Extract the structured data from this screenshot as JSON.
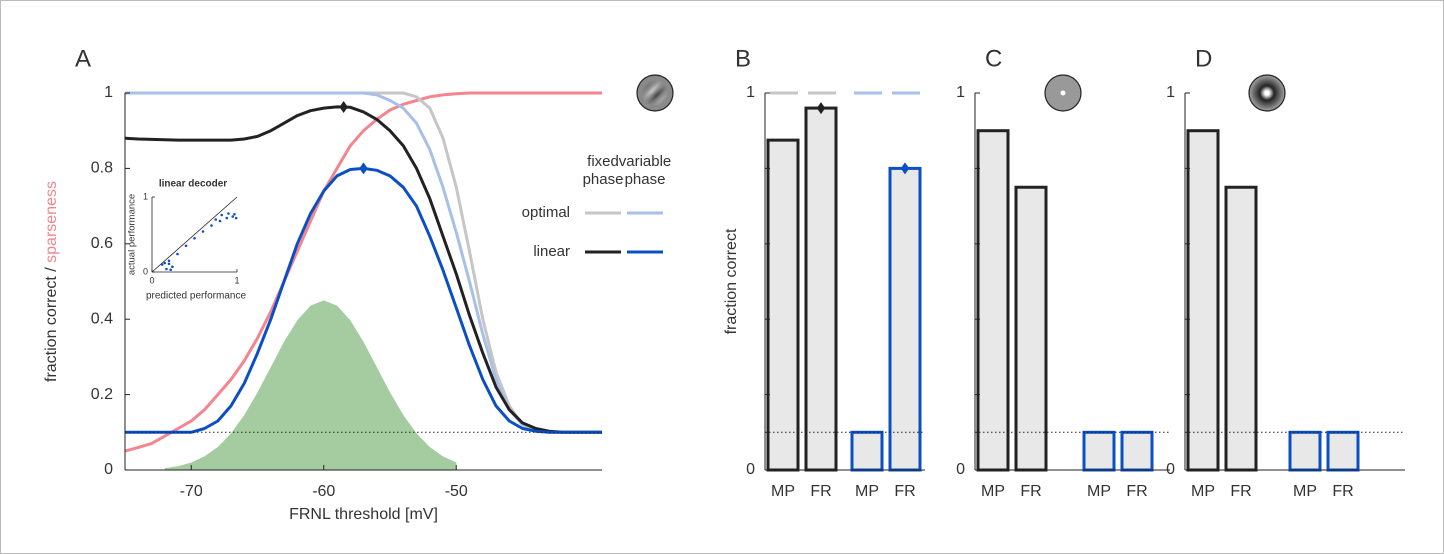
{
  "chart_data": [
    {
      "type": "line",
      "label": "A",
      "xlabel": "FRNL threshold [mV]",
      "ylabel": [
        "fraction correct / ",
        "sparseness"
      ],
      "xlim": [
        -75,
        -39
      ],
      "ylim": [
        0,
        1
      ],
      "xticks": [
        -70,
        -60,
        -50
      ],
      "yticks": [
        0,
        0.2,
        0.4,
        0.6,
        0.8,
        1
      ],
      "chance_level": 0.1,
      "x": [
        -75,
        -74,
        -73,
        -72,
        -71,
        -70,
        -69,
        -68,
        -67,
        -66,
        -65,
        -64,
        -63,
        -62,
        -61,
        -60,
        -59,
        -58,
        -57,
        -56,
        -55,
        -54,
        -53,
        -52,
        -51,
        -50,
        -49,
        -48,
        -47,
        -46,
        -45,
        -44,
        -43,
        -42,
        -41,
        -40,
        -39
      ],
      "series": [
        {
          "style": "area",
          "color": "#a5cca1",
          "values": [
            null,
            null,
            null,
            0.005,
            0.01,
            0.02,
            0.036,
            0.061,
            0.097,
            0.146,
            0.206,
            0.273,
            0.34,
            0.397,
            0.436,
            0.45,
            0.436,
            0.397,
            0.34,
            0.273,
            0.206,
            0.146,
            0.097,
            0.061,
            0.036,
            0.02,
            null,
            null,
            null,
            null,
            null,
            null,
            null,
            null,
            null,
            null,
            null
          ]
        },
        {
          "color": "#f4858e",
          "values": [
            0.05,
            0.06,
            0.07,
            0.09,
            0.11,
            0.13,
            0.16,
            0.2,
            0.24,
            0.29,
            0.35,
            0.42,
            0.5,
            0.58,
            0.66,
            0.74,
            0.8,
            0.86,
            0.9,
            0.93,
            0.955,
            0.97,
            0.98,
            0.99,
            0.995,
            0.998,
            1,
            1,
            1,
            1,
            1,
            1,
            1,
            1,
            1,
            1,
            1
          ]
        },
        {
          "color": "#c6c6c6",
          "row": 0,
          "column": 0,
          "values": [
            1,
            1,
            1,
            1,
            1,
            1,
            1,
            1,
            1,
            1,
            1,
            1,
            1,
            1,
            1,
            1,
            1,
            1,
            1,
            1,
            1,
            1,
            0.99,
            0.96,
            0.88,
            0.75,
            0.58,
            0.4,
            0.26,
            0.17,
            0.12,
            0.105,
            0.1,
            0.1,
            0.1,
            0.1,
            0.1
          ]
        },
        {
          "color": "#a8bfe8",
          "row": 0,
          "column": 1,
          "values": [
            1,
            1,
            1,
            1,
            1,
            1,
            1,
            1,
            1,
            1,
            1,
            1,
            1,
            1,
            1,
            1,
            1,
            1,
            1,
            0.995,
            0.98,
            0.96,
            0.92,
            0.85,
            0.75,
            0.63,
            0.5,
            0.36,
            0.24,
            0.16,
            0.12,
            0.105,
            0.1,
            0.1,
            0.1,
            0.1,
            0.1
          ]
        },
        {
          "color": "#222222",
          "row": 1,
          "column": 0,
          "values": [
            0.88,
            0.878,
            0.877,
            0.876,
            0.875,
            0.875,
            0.875,
            0.875,
            0.875,
            0.878,
            0.885,
            0.9,
            0.92,
            0.94,
            0.953,
            0.96,
            0.963,
            0.962,
            0.95,
            0.93,
            0.9,
            0.86,
            0.8,
            0.72,
            0.62,
            0.52,
            0.41,
            0.31,
            0.22,
            0.16,
            0.125,
            0.11,
            0.103,
            0.1,
            0.1,
            0.1,
            0.1
          ]
        },
        {
          "color": "#0b4fc4",
          "row": 1,
          "column": 1,
          "values": [
            0.1,
            0.1,
            0.1,
            0.1,
            0.1,
            0.1,
            0.11,
            0.13,
            0.17,
            0.23,
            0.31,
            0.4,
            0.5,
            0.6,
            0.68,
            0.74,
            0.78,
            0.797,
            0.8,
            0.795,
            0.78,
            0.75,
            0.7,
            0.62,
            0.53,
            0.43,
            0.33,
            0.24,
            0.17,
            0.13,
            0.11,
            0.103,
            0.1,
            0.1,
            0.1,
            0.1,
            0.1
          ]
        }
      ],
      "markers": [
        {
          "x": -58.5,
          "y": 0.963,
          "color": "#222222"
        },
        {
          "x": -57,
          "y": 0.8,
          "color": "#0b4fc4"
        }
      ],
      "legend": {
        "columns": [
          [
            "fixed",
            "phase"
          ],
          [
            "variable",
            "phase"
          ]
        ],
        "rows": [
          "optimal",
          "linear"
        ]
      },
      "inset": {
        "title": "linear decoder",
        "xlabel": "predicted performance",
        "ylabel": "actual performance",
        "xlim": [
          0,
          1
        ],
        "ylim": [
          0,
          1
        ],
        "xticks": [
          0,
          1
        ],
        "yticks": [
          0,
          1
        ],
        "color": "#0b4fc4",
        "x": [
          0.12,
          0.17,
          0.22,
          0.24,
          0.2,
          0.15,
          0.2,
          0.3,
          0.4,
          0.5,
          0.6,
          0.7,
          0.8,
          0.88,
          0.95,
          0.99,
          0.97,
          0.9,
          0.82,
          0.75
        ],
        "y": [
          0.1,
          0.04,
          0.03,
          0.07,
          0.11,
          0.12,
          0.15,
          0.24,
          0.35,
          0.45,
          0.54,
          0.62,
          0.68,
          0.72,
          0.74,
          0.72,
          0.77,
          0.78,
          0.76,
          0.7
        ]
      }
    },
    {
      "type": "bar",
      "label": "B",
      "ylabel": "fraction correct",
      "categories": [
        "MP",
        "FR",
        "MP",
        "FR"
      ],
      "values": [
        0.875,
        0.96,
        0.1,
        0.8
      ],
      "colors": [
        "#222222",
        "#222222",
        "#0b4fc4",
        "#0b4fc4"
      ],
      "fill": "#e8e8e8",
      "ylim": [
        0,
        1
      ],
      "yticks": [
        0,
        1
      ],
      "minor_yticks": [
        0.2,
        0.4,
        0.6,
        0.8
      ],
      "chance_level": 0.1,
      "optimal_values": [
        1,
        1,
        1,
        1
      ],
      "optimal_colors": [
        "#c6c6c6",
        "#c6c6c6",
        "#a8bfe8",
        "#a8bfe8"
      ],
      "marked_bars": [
        1,
        3
      ]
    },
    {
      "type": "bar",
      "label": "C",
      "categories": [
        "MP",
        "FR",
        "MP",
        "FR"
      ],
      "values": [
        0.9,
        0.75,
        0.1,
        0.1
      ],
      "colors": [
        "#222222",
        "#222222",
        "#0b4fc4",
        "#0b4fc4"
      ],
      "fill": "#e8e8e8",
      "ylim": [
        0,
        1
      ],
      "yticks": [
        0,
        1
      ],
      "minor_yticks": [
        0.2,
        0.4,
        0.6,
        0.8
      ],
      "chance_level": 0.1
    },
    {
      "type": "bar",
      "label": "D",
      "categories": [
        "MP",
        "FR",
        "MP",
        "FR"
      ],
      "values": [
        0.9,
        0.75,
        0.1,
        0.1
      ],
      "colors": [
        "#222222",
        "#222222",
        "#0b4fc4",
        "#0b4fc4"
      ],
      "fill": "#e8e8e8",
      "ylim": [
        0,
        1
      ],
      "yticks": [
        0,
        1
      ],
      "minor_yticks": [
        0.2,
        0.4,
        0.6,
        0.8
      ],
      "chance_level": 0.1
    }
  ]
}
